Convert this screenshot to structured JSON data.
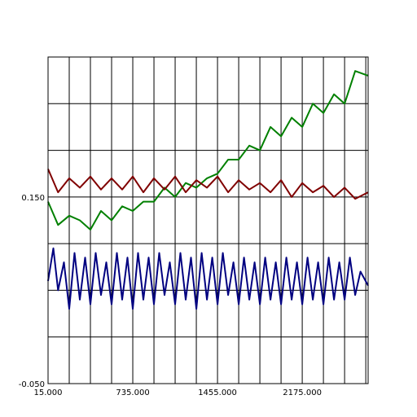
{
  "chart_data": {
    "type": "line",
    "title": "",
    "xlabel": "",
    "ylabel": "",
    "xlim": [
      15,
      2735
    ],
    "ylim": [
      -0.05,
      0.3
    ],
    "grid": true,
    "x_tick_labels": [
      "15.000",
      "735.000",
      "1455.000",
      "2175.000"
    ],
    "x_tick_values": [
      15,
      735,
      1455,
      2175
    ],
    "y_tick_labels": [
      "-0.050",
      "0.150"
    ],
    "y_tick_values": [
      -0.05,
      0.15
    ],
    "y_gridlines": [
      -0.05,
      0.0,
      0.05,
      0.1,
      0.15,
      0.2,
      0.25,
      0.3
    ],
    "x_gridlines": [
      15,
      195,
      375,
      555,
      735,
      915,
      1095,
      1275,
      1455,
      1635,
      1815,
      1995,
      2175,
      2355,
      2535,
      2715
    ],
    "series": [
      {
        "color": "#008000",
        "x": [
          15,
          100,
          195,
          285,
          375,
          465,
          555,
          645,
          735,
          825,
          915,
          1005,
          1095,
          1185,
          1275,
          1365,
          1455,
          1545,
          1635,
          1725,
          1815,
          1905,
          1995,
          2085,
          2175,
          2265,
          2355,
          2445,
          2535,
          2625,
          2735
        ],
        "y": [
          0.145,
          0.12,
          0.13,
          0.125,
          0.115,
          0.135,
          0.125,
          0.14,
          0.135,
          0.145,
          0.145,
          0.16,
          0.15,
          0.165,
          0.16,
          0.17,
          0.175,
          0.19,
          0.19,
          0.205,
          0.2,
          0.225,
          0.215,
          0.235,
          0.225,
          0.25,
          0.24,
          0.26,
          0.25,
          0.285,
          0.28
        ]
      },
      {
        "color": "#800000",
        "x": [
          15,
          100,
          195,
          285,
          375,
          465,
          555,
          645,
          735,
          825,
          915,
          1005,
          1095,
          1185,
          1275,
          1365,
          1455,
          1545,
          1635,
          1725,
          1815,
          1905,
          1995,
          2085,
          2175,
          2265,
          2355,
          2445,
          2535,
          2625,
          2735
        ],
        "y": [
          0.18,
          0.155,
          0.17,
          0.16,
          0.172,
          0.158,
          0.17,
          0.158,
          0.172,
          0.155,
          0.17,
          0.158,
          0.172,
          0.155,
          0.168,
          0.16,
          0.172,
          0.155,
          0.168,
          0.158,
          0.165,
          0.155,
          0.168,
          0.15,
          0.165,
          0.155,
          0.162,
          0.15,
          0.16,
          0.148,
          0.155
        ]
      },
      {
        "color": "#000080",
        "x": [
          15,
          60,
          100,
          150,
          195,
          240,
          285,
          330,
          375,
          420,
          465,
          510,
          555,
          600,
          645,
          690,
          735,
          780,
          825,
          870,
          915,
          960,
          1005,
          1050,
          1095,
          1140,
          1185,
          1230,
          1275,
          1320,
          1365,
          1410,
          1455,
          1500,
          1545,
          1590,
          1635,
          1680,
          1725,
          1770,
          1815,
          1860,
          1905,
          1950,
          1995,
          2040,
          2085,
          2130,
          2175,
          2220,
          2265,
          2310,
          2355,
          2400,
          2445,
          2490,
          2535,
          2580,
          2625,
          2670,
          2735
        ],
        "y": [
          0.06,
          0.095,
          0.05,
          0.08,
          0.03,
          0.09,
          0.04,
          0.085,
          0.035,
          0.09,
          0.045,
          0.08,
          0.035,
          0.09,
          0.04,
          0.085,
          0.03,
          0.09,
          0.04,
          0.085,
          0.035,
          0.09,
          0.045,
          0.08,
          0.035,
          0.09,
          0.04,
          0.085,
          0.03,
          0.09,
          0.04,
          0.085,
          0.035,
          0.09,
          0.045,
          0.08,
          0.035,
          0.085,
          0.04,
          0.08,
          0.035,
          0.085,
          0.04,
          0.08,
          0.035,
          0.085,
          0.04,
          0.08,
          0.035,
          0.085,
          0.04,
          0.08,
          0.035,
          0.085,
          0.04,
          0.08,
          0.04,
          0.085,
          0.045,
          0.07,
          0.055
        ]
      }
    ]
  }
}
